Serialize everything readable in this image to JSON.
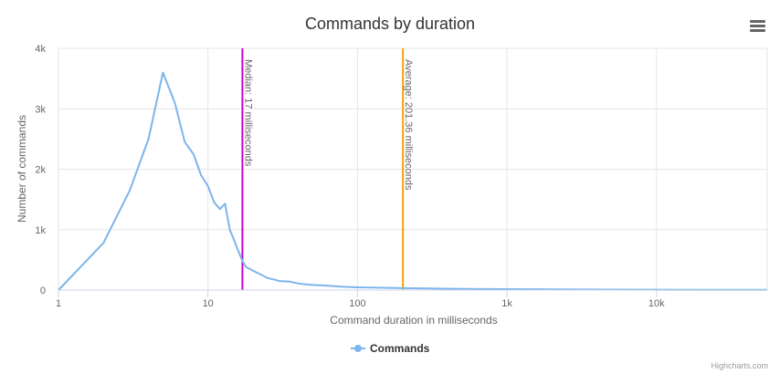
{
  "menu_icon": "hamburger-menu-icon",
  "credits": "Highcharts.com",
  "chart_data": {
    "type": "line",
    "title": "Commands by duration",
    "xlabel": "Command duration in milliseconds",
    "ylabel": "Number of commands",
    "x_scale": "log",
    "xlim": [
      1,
      55000
    ],
    "ylim": [
      0,
      4000
    ],
    "x_ticks": [
      1,
      10,
      100,
      1000,
      10000
    ],
    "x_tick_labels": [
      "1",
      "10",
      "100",
      "1k",
      "10k"
    ],
    "y_ticks": [
      0,
      1000,
      2000,
      3000,
      4000
    ],
    "y_tick_labels": [
      "0",
      "1k",
      "2k",
      "3k",
      "4k"
    ],
    "grid": true,
    "legend_position": "bottom-center",
    "series": [
      {
        "name": "Commands",
        "color": "#7cb5ec",
        "x": [
          1,
          2,
          3,
          4,
          5,
          6,
          7,
          8,
          9,
          10,
          11,
          12,
          13,
          14,
          15,
          16,
          17,
          18,
          20,
          22,
          25,
          28,
          30,
          35,
          40,
          45,
          50,
          60,
          70,
          80,
          100,
          150,
          200,
          300,
          500,
          1000,
          2000,
          5000,
          10000,
          20000,
          55000
        ],
        "values": [
          0,
          780,
          1650,
          2500,
          3600,
          3100,
          2450,
          2250,
          1900,
          1720,
          1450,
          1340,
          1430,
          1000,
          820,
          640,
          480,
          380,
          320,
          270,
          200,
          170,
          150,
          140,
          110,
          95,
          85,
          75,
          65,
          55,
          45,
          38,
          32,
          25,
          20,
          15,
          10,
          8,
          6,
          5,
          4
        ]
      }
    ],
    "plot_lines": [
      {
        "value": 17,
        "label": "Median: 17 milliseconds",
        "color": "#cc00cc"
      },
      {
        "value": 201.36,
        "label": "Average: 201.36 milliseconds",
        "color": "#f0a30a"
      }
    ]
  }
}
